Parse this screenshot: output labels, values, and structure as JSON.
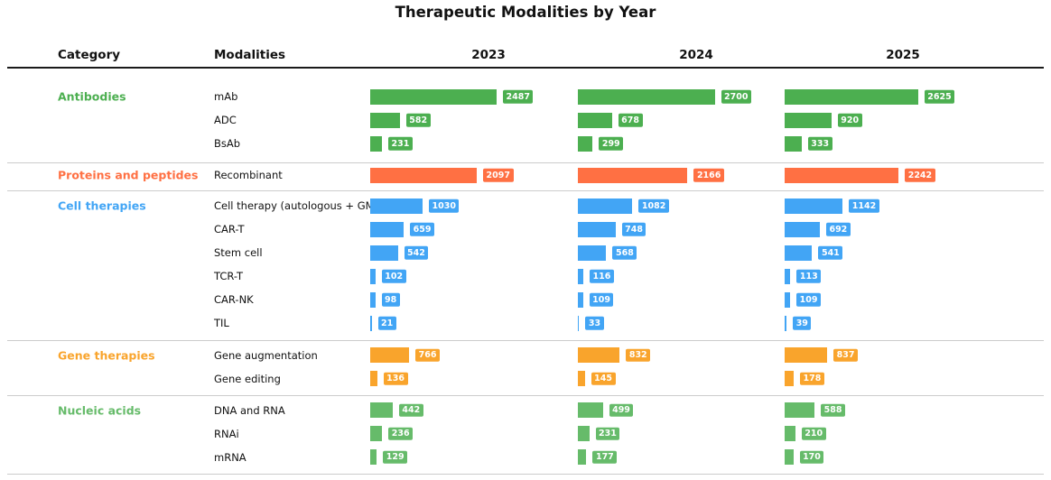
{
  "chart_data": {
    "type": "bar",
    "title": "Therapeutic Modalities by Year",
    "columns": [
      "Category",
      "Modalities",
      "2023",
      "2024",
      "2025"
    ],
    "years": [
      "2023",
      "2024",
      "2025"
    ],
    "xmax": 2700,
    "legend_position": "none",
    "grid": false,
    "groups": [
      {
        "category": "Antibodies",
        "color": "#4caf50",
        "rows": [
          {
            "label": "mAb",
            "values": [
              2487,
              2700,
              2625
            ]
          },
          {
            "label": "ADC",
            "values": [
              582,
              678,
              920
            ]
          },
          {
            "label": "BsAb",
            "values": [
              231,
              299,
              333
            ]
          }
        ]
      },
      {
        "category": "Proteins and peptides",
        "color": "#ff7043",
        "rows": [
          {
            "label": "Recombinant",
            "values": [
              2097,
              2166,
              2242
            ]
          }
        ]
      },
      {
        "category": "Cell therapies",
        "color": "#42a5f5",
        "rows": [
          {
            "label": "Cell therapy (autologous + GM)",
            "values": [
              1030,
              1082,
              1142
            ]
          },
          {
            "label": "CAR-T",
            "values": [
              659,
              748,
              692
            ]
          },
          {
            "label": "Stem cell",
            "values": [
              542,
              568,
              541
            ]
          },
          {
            "label": "TCR-T",
            "values": [
              102,
              116,
              113
            ]
          },
          {
            "label": "CAR-NK",
            "values": [
              98,
              109,
              109
            ]
          },
          {
            "label": "TIL",
            "values": [
              21,
              33,
              39
            ]
          }
        ]
      },
      {
        "category": "Gene therapies",
        "color": "#f9a42c",
        "rows": [
          {
            "label": "Gene augmentation",
            "values": [
              766,
              832,
              837
            ]
          },
          {
            "label": "Gene editing",
            "values": [
              136,
              145,
              178
            ]
          }
        ]
      },
      {
        "category": "Nucleic acids",
        "color": "#66bb6a",
        "rows": [
          {
            "label": "DNA and RNA",
            "values": [
              442,
              499,
              588
            ]
          },
          {
            "label": "RNAi",
            "values": [
              236,
              231,
              210
            ]
          },
          {
            "label": "mRNA",
            "values": [
              129,
              177,
              170
            ]
          }
        ]
      }
    ]
  }
}
